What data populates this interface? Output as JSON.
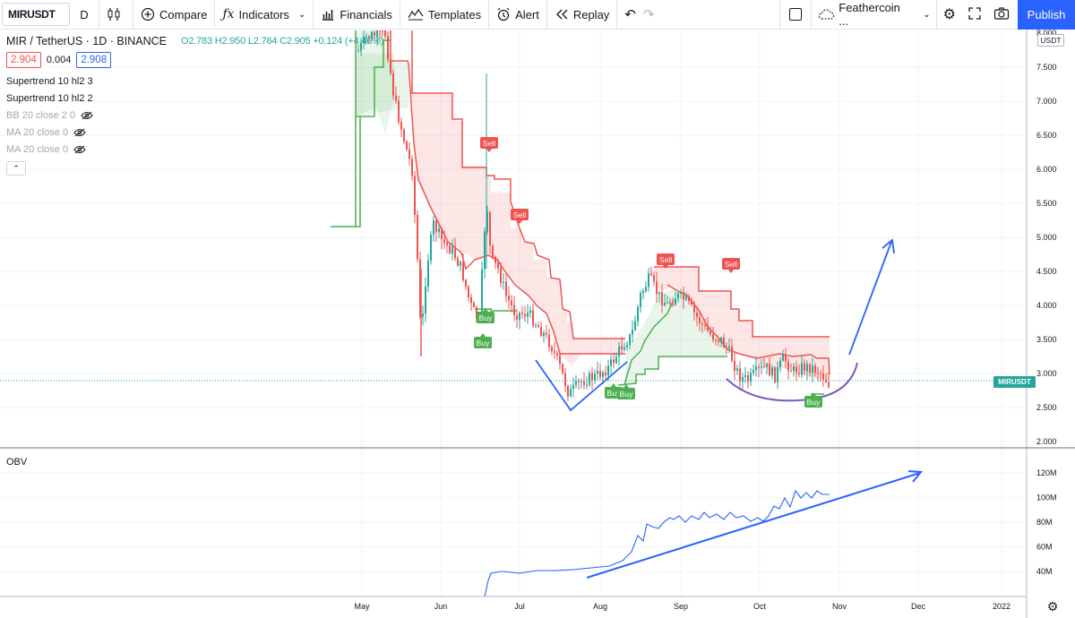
{
  "toolbar": {
    "symbol": "MIRUSDT",
    "interval": "D",
    "compare_label": "Compare",
    "indicators_label": "Indicators",
    "financials_label": "Financials",
    "templates_label": "Templates",
    "alert_label": "Alert",
    "replay_label": "Replay",
    "layout_name": "Feathercoin ...",
    "publish_label": "Publish"
  },
  "legend": {
    "symbol_title": "MIR / TetherUS · 1D · BINANCE",
    "open": "O2.783",
    "high": "H2.950",
    "low": "L2.764",
    "close": "C2.905",
    "change": "+0.124 (+4.46%)",
    "bid": "2.904",
    "spread": "0.004",
    "ask": "2.908",
    "indicators": [
      {
        "label": "Supertrend 10 hl2 3",
        "hidden": false
      },
      {
        "label": "Supertrend 10 hl2 2",
        "hidden": false
      },
      {
        "label": "BB 20 close 2 0",
        "hidden": true
      },
      {
        "label": "MA 20 close 0",
        "hidden": true
      },
      {
        "label": "MA 20 close 0",
        "hidden": true
      }
    ]
  },
  "price_axis": {
    "currency": "USDT",
    "ticks": [
      "8.000",
      "7.500",
      "7.000",
      "6.500",
      "6.000",
      "5.500",
      "5.000",
      "4.500",
      "4.000",
      "3.500",
      "3.000",
      "2.500",
      "2.000"
    ],
    "symbol_tag": "MIRUSDT"
  },
  "obv_pane": {
    "label": "OBV",
    "ticks": [
      "120M",
      "100M",
      "80M",
      "60M",
      "40M"
    ]
  },
  "time_axis": {
    "ticks": [
      "May",
      "Jun",
      "Jul",
      "Aug",
      "Sep",
      "Oct",
      "Nov",
      "Dec",
      "2022"
    ]
  },
  "signals": {
    "sell": [
      "Sell",
      "Sell",
      "Sell",
      "Sell"
    ],
    "buy": [
      "Buy",
      "Buy",
      "Buy",
      "Buy",
      "Buy"
    ]
  },
  "colors": {
    "up": "#26a69a",
    "down": "#ef5350",
    "supertrend_down": "#ef5350",
    "supertrend_up": "#4caf50",
    "annotation_blue": "#2962ff",
    "annotation_purple": "#7e57c2",
    "obv_line": "#2962ff",
    "accent": "#2962ff"
  }
}
